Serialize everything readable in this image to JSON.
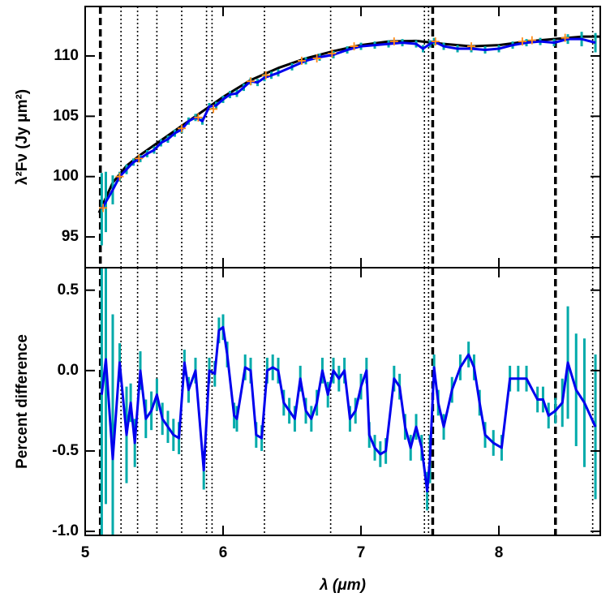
{
  "chart_data": [
    {
      "type": "line",
      "ylabel": "λ²Fν (Jy μm²)",
      "xlim": [
        5,
        8.735
      ],
      "ylim": [
        92.45,
        114.1
      ],
      "xticks": [
        5,
        6,
        7,
        8
      ],
      "yticks": [
        95,
        100,
        105,
        110
      ],
      "vlines_dashed": [
        5.11,
        7.52,
        8.41
      ],
      "vlines_dotted": [
        5.26,
        5.38,
        5.52,
        5.7,
        5.88,
        5.92,
        6.3,
        6.78,
        7.46,
        7.49,
        8.68
      ],
      "series": [
        {
          "color": "#000000",
          "style": "line",
          "width": 3,
          "x": [
            5.1,
            5.2,
            5.3,
            5.4,
            5.5,
            5.6,
            5.7,
            5.8,
            5.9,
            6.0,
            6.2,
            6.4,
            6.6,
            6.8,
            7.0,
            7.2,
            7.4,
            7.6,
            7.8,
            8.0,
            8.2,
            8.4,
            8.6,
            8.73
          ],
          "values": [
            97.0,
            99.5,
            100.9,
            101.8,
            102.6,
            103.4,
            104.2,
            105.0,
            105.8,
            106.6,
            108.0,
            109.0,
            109.8,
            110.4,
            110.9,
            111.2,
            111.25,
            111.0,
            110.8,
            110.9,
            111.2,
            111.4,
            111.6,
            111.6
          ]
        },
        {
          "color": "#0000ee",
          "style": "line",
          "width": 3,
          "errcolor": "#00aaaa",
          "x": [
            5.12,
            5.15,
            5.2,
            5.25,
            5.3,
            5.35,
            5.4,
            5.45,
            5.5,
            5.55,
            5.6,
            5.65,
            5.7,
            5.75,
            5.8,
            5.85,
            5.9,
            5.95,
            6.0,
            6.05,
            6.1,
            6.15,
            6.2,
            6.25,
            6.3,
            6.35,
            6.4,
            6.5,
            6.6,
            6.7,
            6.8,
            6.9,
            7.0,
            7.1,
            7.2,
            7.3,
            7.4,
            7.45,
            7.5,
            7.53,
            7.6,
            7.7,
            7.8,
            7.9,
            8.0,
            8.1,
            8.2,
            8.3,
            8.4,
            8.5,
            8.6,
            8.7
          ],
          "values": [
            97.3,
            97.9,
            98.9,
            100.0,
            100.6,
            101.2,
            101.5,
            101.9,
            102.2,
            102.8,
            103.1,
            103.6,
            103.9,
            104.6,
            104.9,
            104.6,
            105.8,
            105.9,
            106.4,
            106.8,
            106.9,
            107.4,
            107.9,
            107.8,
            108.2,
            108.4,
            108.6,
            109.1,
            109.6,
            109.9,
            110.1,
            110.5,
            110.8,
            110.9,
            111.0,
            111.1,
            111.0,
            110.6,
            111.0,
            111.2,
            110.8,
            110.6,
            110.6,
            110.5,
            110.6,
            110.9,
            111.1,
            111.2,
            111.1,
            111.4,
            111.4,
            111.1
          ],
          "errors": [
            3.0,
            2.5,
            1.2,
            0.4,
            0.4,
            0.3,
            0.3,
            0.3,
            0.3,
            0.3,
            0.3,
            0.3,
            0.3,
            0.3,
            0.3,
            0.3,
            0.3,
            0.3,
            0.3,
            0.3,
            0.3,
            0.3,
            0.3,
            0.3,
            0.3,
            0.3,
            0.3,
            0.3,
            0.3,
            0.3,
            0.3,
            0.3,
            0.3,
            0.3,
            0.3,
            0.3,
            0.3,
            0.3,
            0.3,
            0.3,
            0.3,
            0.3,
            0.3,
            0.3,
            0.3,
            0.3,
            0.3,
            0.3,
            0.3,
            0.4,
            0.6,
            0.8
          ]
        },
        {
          "color": "#ff8c1a",
          "style": "plus",
          "x": [
            5.13,
            5.25,
            5.39,
            5.7,
            5.82,
            5.93,
            6.2,
            6.31,
            6.57,
            6.68,
            6.79,
            6.95,
            7.24,
            7.54,
            7.8,
            8.17,
            8.24,
            8.48
          ],
          "values": [
            97.4,
            100.0,
            101.5,
            104.0,
            104.9,
            105.6,
            107.9,
            108.4,
            109.6,
            109.8,
            110.2,
            110.8,
            111.2,
            111.2,
            110.8,
            111.2,
            111.3,
            111.5
          ]
        }
      ]
    },
    {
      "type": "line",
      "ylabel": "Percent difference",
      "xlabel": "λ (μm)",
      "xlim": [
        5,
        8.735
      ],
      "ylim": [
        -1.025,
        0.64
      ],
      "xticks": [
        5,
        6,
        7,
        8
      ],
      "yticks": [
        {
          "value": -1,
          "label": "-1.0"
        },
        -0.5,
        {
          "value": 0,
          "label": "0.0"
        },
        0.5
      ],
      "vlines_dashed": [
        5.11,
        7.52,
        8.41
      ],
      "vlines_dotted": [
        5.26,
        5.38,
        5.52,
        5.7,
        5.88,
        5.92,
        6.3,
        6.78,
        7.46,
        7.49,
        8.68
      ],
      "series": [
        {
          "color": "#0000ee",
          "style": "line",
          "width": 3,
          "errcolor": "#00aaaa",
          "x": [
            5.12,
            5.15,
            5.2,
            5.25,
            5.3,
            5.33,
            5.36,
            5.4,
            5.44,
            5.48,
            5.52,
            5.56,
            5.6,
            5.64,
            5.68,
            5.72,
            5.75,
            5.8,
            5.86,
            5.9,
            5.94,
            5.97,
            6.0,
            6.03,
            6.08,
            6.1,
            6.16,
            6.2,
            6.24,
            6.28,
            6.32,
            6.36,
            6.4,
            6.44,
            6.48,
            6.52,
            6.56,
            6.6,
            6.64,
            6.68,
            6.72,
            6.76,
            6.8,
            6.84,
            6.88,
            6.92,
            6.96,
            7.0,
            7.04,
            7.06,
            7.1,
            7.14,
            7.18,
            7.24,
            7.28,
            7.32,
            7.36,
            7.4,
            7.44,
            7.48,
            7.5,
            7.53,
            7.56,
            7.6,
            7.66,
            7.72,
            7.78,
            7.82,
            7.86,
            7.9,
            7.96,
            8.02,
            8.08,
            8.14,
            8.2,
            8.28,
            8.32,
            8.36,
            8.41,
            8.46,
            8.5,
            8.56,
            8.62,
            8.7
          ],
          "values": [
            -0.15,
            0.07,
            -0.55,
            0.05,
            -0.4,
            -0.2,
            -0.45,
            0.0,
            -0.3,
            -0.25,
            -0.15,
            -0.3,
            -0.35,
            -0.4,
            -0.42,
            0.05,
            -0.12,
            0.0,
            -0.62,
            0.0,
            -0.02,
            0.25,
            0.27,
            0.1,
            -0.28,
            -0.3,
            0.02,
            0.0,
            -0.4,
            -0.42,
            0.0,
            0.02,
            0.0,
            -0.2,
            -0.25,
            -0.3,
            -0.05,
            -0.25,
            -0.3,
            -0.2,
            0.0,
            -0.15,
            0.0,
            -0.05,
            0.0,
            -0.3,
            -0.25,
            -0.1,
            0.0,
            -0.4,
            -0.48,
            -0.52,
            -0.5,
            -0.05,
            -0.1,
            -0.35,
            -0.48,
            -0.35,
            -0.48,
            -0.75,
            -0.55,
            0.02,
            -0.2,
            -0.35,
            -0.12,
            0.02,
            0.1,
            0.02,
            -0.2,
            -0.4,
            -0.45,
            -0.48,
            -0.05,
            -0.05,
            -0.05,
            -0.18,
            -0.18,
            -0.28,
            -0.25,
            -0.2,
            0.05,
            -0.12,
            -0.2,
            -0.35
          ],
          "errors": [
            0.9,
            0.9,
            0.9,
            0.12,
            0.3,
            0.12,
            0.15,
            0.12,
            0.12,
            0.12,
            0.1,
            0.1,
            0.1,
            0.1,
            0.1,
            0.08,
            0.08,
            0.08,
            0.12,
            0.08,
            0.08,
            0.08,
            0.08,
            0.08,
            0.08,
            0.08,
            0.08,
            0.08,
            0.08,
            0.08,
            0.08,
            0.08,
            0.08,
            0.08,
            0.08,
            0.08,
            0.08,
            0.08,
            0.08,
            0.08,
            0.08,
            0.08,
            0.08,
            0.08,
            0.08,
            0.08,
            0.08,
            0.08,
            0.08,
            0.08,
            0.08,
            0.08,
            0.08,
            0.08,
            0.08,
            0.08,
            0.08,
            0.08,
            0.08,
            0.12,
            0.15,
            0.08,
            0.08,
            0.08,
            0.08,
            0.08,
            0.08,
            0.08,
            0.08,
            0.08,
            0.08,
            0.08,
            0.08,
            0.08,
            0.08,
            0.08,
            0.08,
            0.08,
            0.08,
            0.15,
            0.35,
            0.35,
            0.4,
            0.45
          ]
        }
      ]
    }
  ]
}
